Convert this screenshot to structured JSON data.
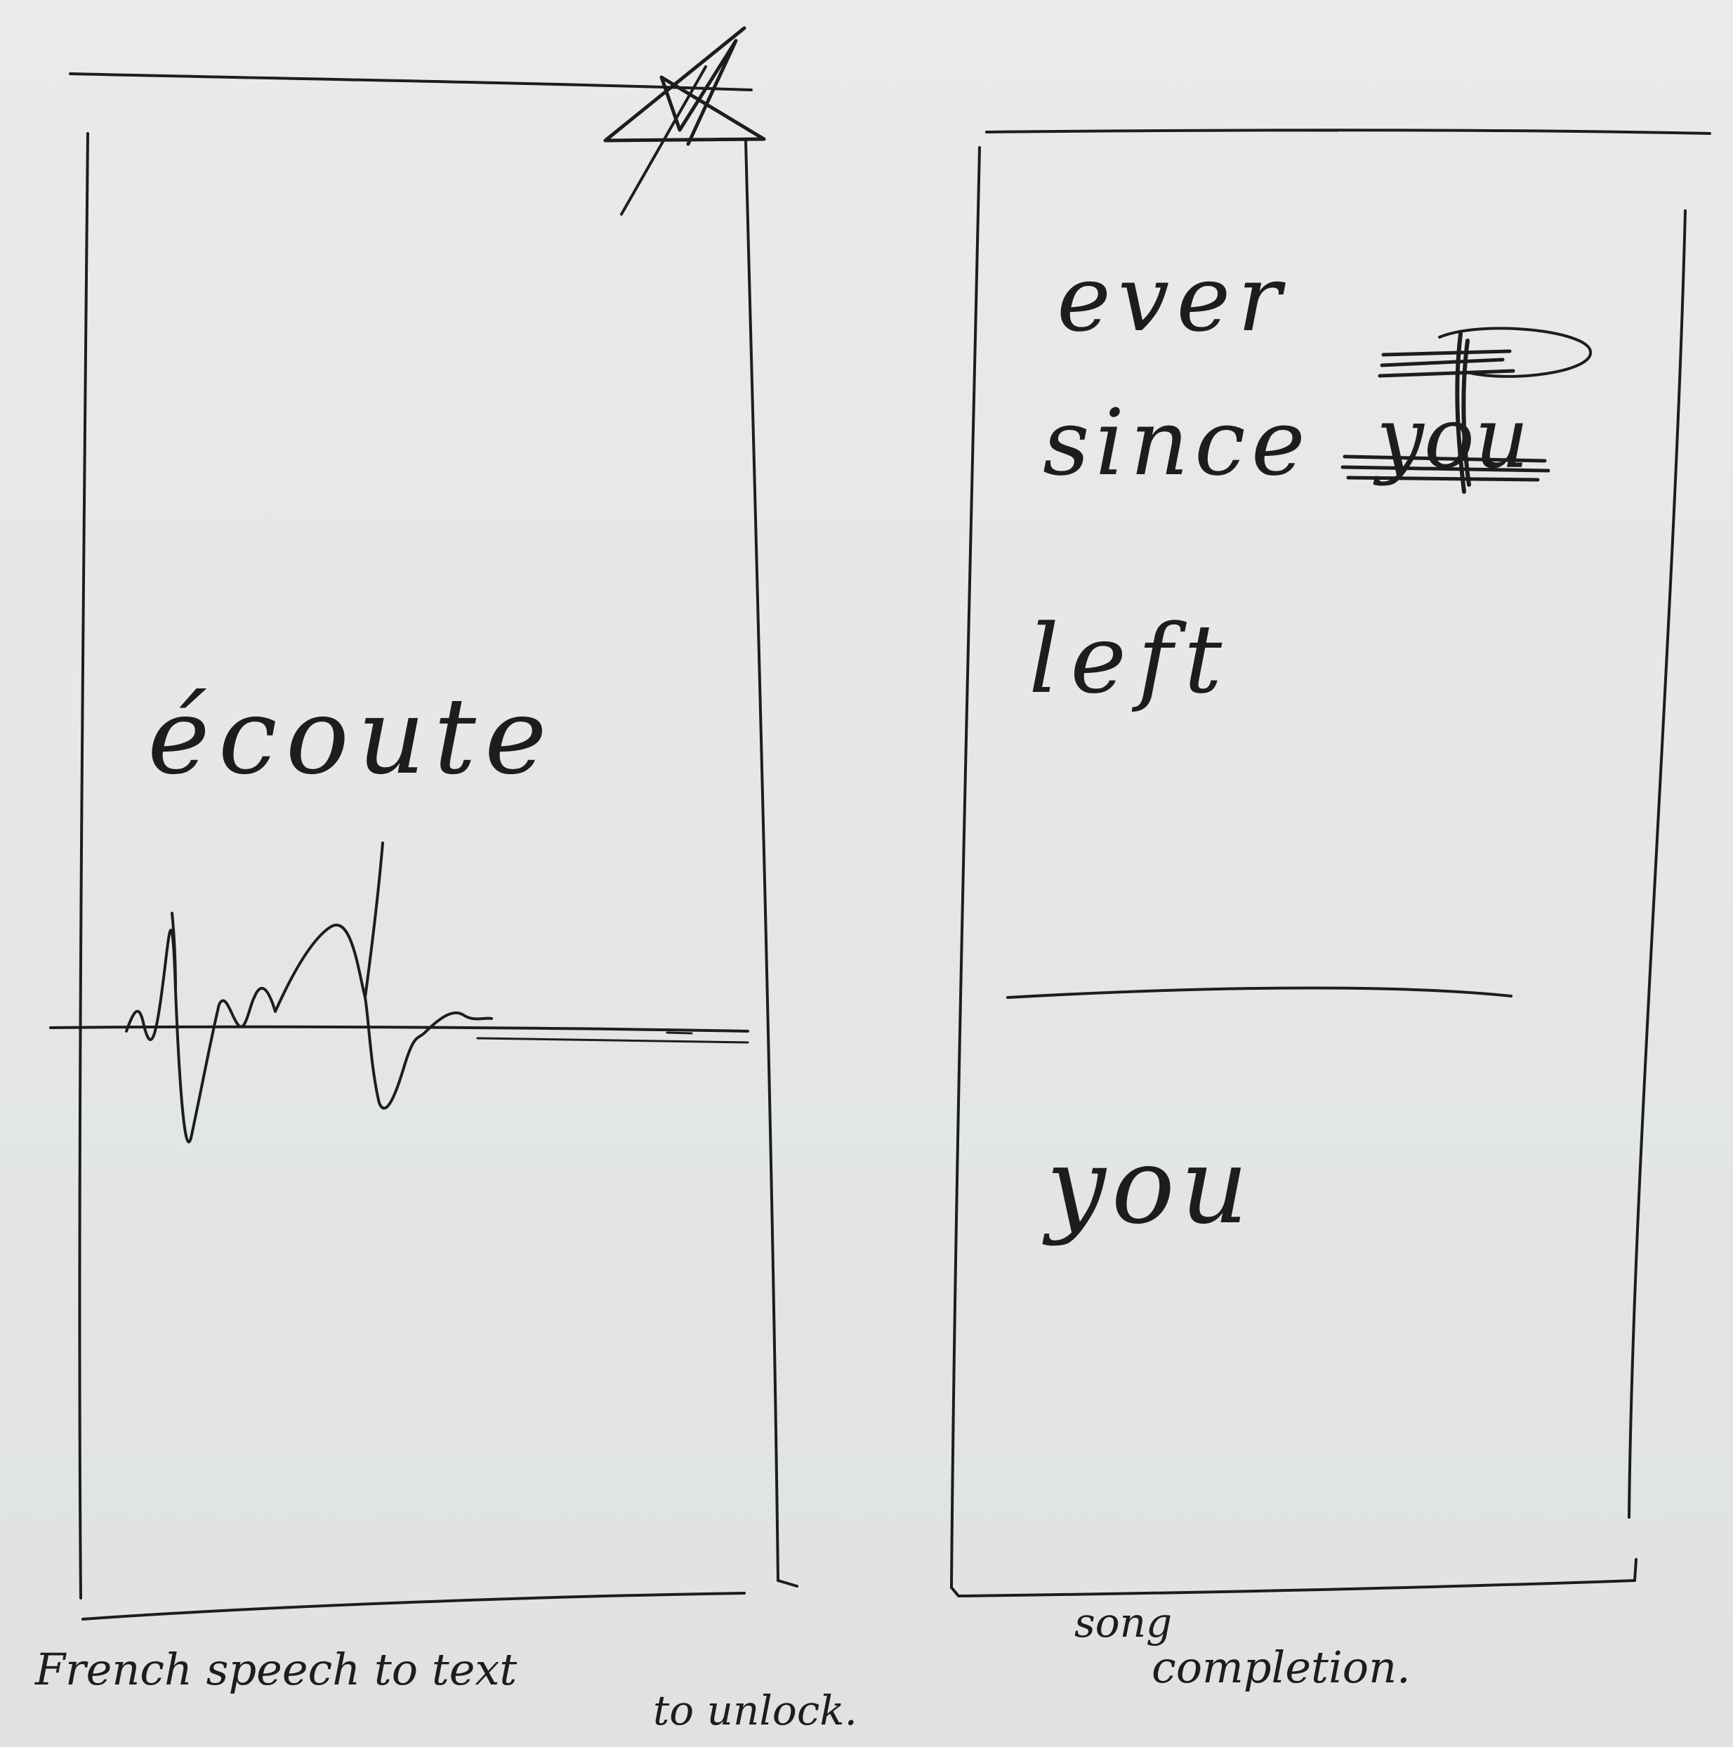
{
  "left_screen": {
    "heading": "écoute",
    "caption_line1": "French speech to text",
    "caption_line2": "to unlock."
  },
  "right_screen": {
    "lyric_line1": "ever",
    "lyric_line2": "since",
    "crossed_word": "you",
    "lyric_line3": "left",
    "answer_word": "you",
    "caption_line1": "song",
    "caption_line2": "completion."
  },
  "colors": {
    "ink": "#1b1d1e",
    "paper": "#e6e8e7"
  }
}
